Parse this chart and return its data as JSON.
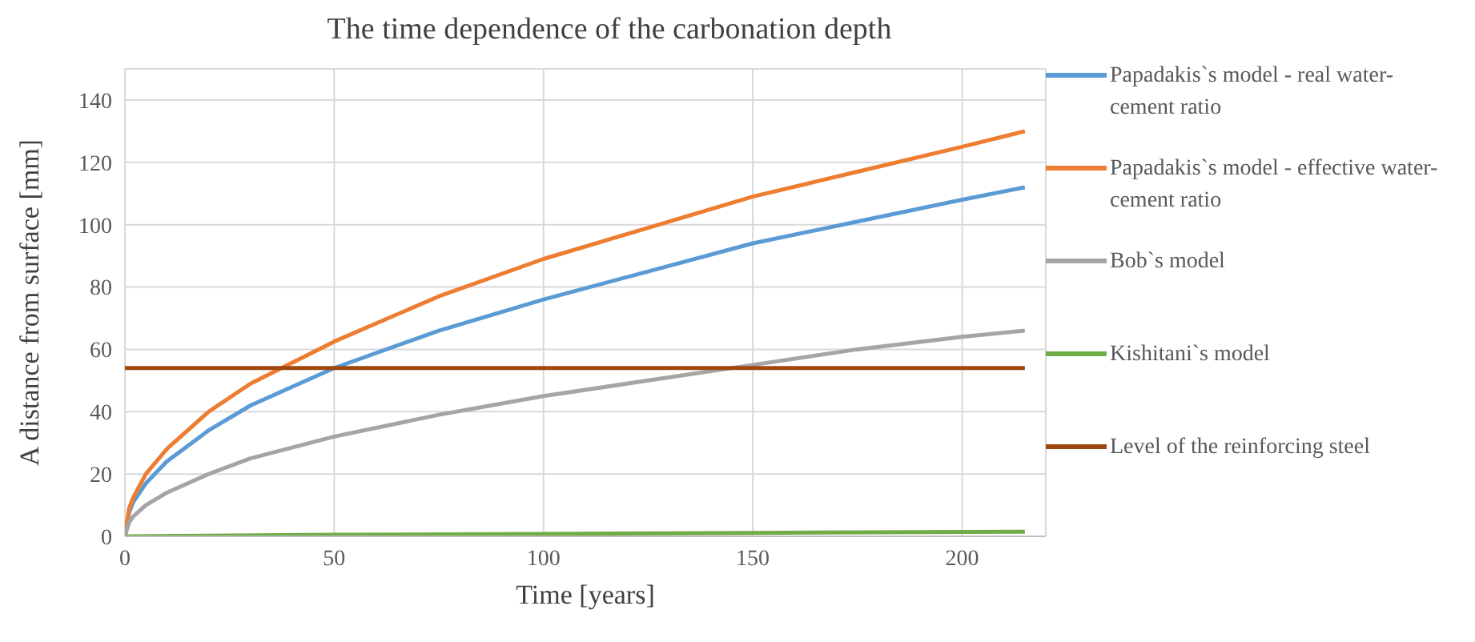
{
  "chart_data": {
    "type": "line",
    "title": "The time dependence of the carbonation depth",
    "xlabel": "Time  [years]",
    "ylabel": "A distance from  surface [mm]",
    "xlim": [
      0,
      220
    ],
    "xticks": [
      0,
      50,
      100,
      150,
      200
    ],
    "ylim": [
      0,
      150
    ],
    "yticks": [
      0,
      20,
      40,
      60,
      80,
      100,
      120,
      140
    ],
    "grid": true,
    "legend": "right",
    "marker": "none",
    "line_style": "solid",
    "series": [
      {
        "name": "Papadakis`s model - real water-cement ratio",
        "color": "#5b9bd5",
        "x": [
          0,
          1,
          2,
          5,
          10,
          20,
          30,
          50,
          75,
          100,
          125,
          150,
          175,
          200,
          215
        ],
        "values": [
          0,
          7.6,
          11,
          17,
          24,
          34,
          42,
          54,
          66,
          76,
          85,
          94,
          101,
          108,
          112
        ]
      },
      {
        "name": "Papadakis`s model - effective water-cement ratio",
        "color": "#ed7d31",
        "x": [
          0,
          1,
          2,
          5,
          10,
          20,
          30,
          50,
          75,
          100,
          125,
          150,
          175,
          200,
          215
        ],
        "values": [
          0,
          9,
          12.5,
          20,
          28,
          40,
          49,
          62.5,
          77,
          89,
          99,
          109,
          117,
          125,
          130
        ]
      },
      {
        "name": "Bob`s model",
        "color": "#a5a5a5",
        "x": [
          0,
          1,
          2,
          5,
          10,
          20,
          30,
          50,
          75,
          100,
          125,
          150,
          175,
          200,
          215
        ],
        "values": [
          0,
          4.5,
          6.4,
          10,
          14,
          20,
          25,
          32,
          39,
          45,
          50,
          55,
          60,
          64,
          66
        ]
      },
      {
        "name": "Kishitani`s model",
        "color": "#70ad47",
        "x": [
          0,
          50,
          100,
          150,
          215
        ],
        "values": [
          0,
          0.5,
          0.8,
          1.1,
          1.5
        ]
      },
      {
        "name": "Level of the reinforcing steel",
        "color": "#9e480e",
        "x": [
          0,
          215
        ],
        "values": [
          54,
          54
        ]
      }
    ]
  }
}
